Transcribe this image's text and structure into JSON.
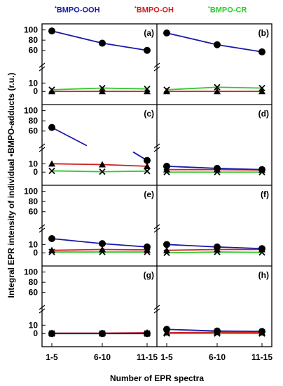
{
  "chart_data": {
    "type": "line",
    "legend": {
      "placement": "top",
      "entries": [
        {
          "name": "BMPO-OOH",
          "color": "#1a1aa8"
        },
        {
          "name": "BMPO-OH",
          "color": "#d02020"
        },
        {
          "name": "BMPO-CR",
          "color": "#2ecc2e"
        }
      ]
    },
    "legend_dot": "•",
    "ylabel": "Integral EPR intensity of individual •BMPO-adducts (r.u.)",
    "xlabel": "Number of EPR spectra",
    "categories": [
      "1-5",
      "6-10",
      "11-15"
    ],
    "y_axis": {
      "broken": true,
      "lower_range": [
        -4,
        17
      ],
      "upper_range": [
        50,
        105
      ],
      "lower_ticks": [
        "0",
        "10"
      ],
      "upper_ticks": [
        "60",
        "80",
        "100"
      ]
    },
    "panels": [
      {
        "label": "(a)",
        "series": [
          {
            "name": "BMPO-OOH",
            "values": [
              98,
              74,
              60
            ],
            "marker": "circle"
          },
          {
            "name": "BMPO-OH",
            "values": [
              0,
              0,
              0
            ],
            "marker": "triangle"
          },
          {
            "name": "BMPO-CR",
            "values": [
              2,
              4,
              3
            ],
            "marker": "cross"
          }
        ]
      },
      {
        "label": "(b)",
        "series": [
          {
            "name": "BMPO-OOH",
            "values": [
              94,
              71,
              57
            ],
            "marker": "circle"
          },
          {
            "name": "BMPO-OH",
            "values": [
              0,
              0,
              0
            ],
            "marker": "triangle"
          },
          {
            "name": "BMPO-CR",
            "values": [
              2,
              5,
              4
            ],
            "marker": "cross"
          }
        ]
      },
      {
        "label": "(c)",
        "series": [
          {
            "name": "BMPO-OOH",
            "values": [
              67,
              null,
              14
            ],
            "marker": "circle"
          },
          {
            "name": "BMPO-OH",
            "values": [
              10,
              9,
              7
            ],
            "marker": "triangle"
          },
          {
            "name": "BMPO-CR",
            "values": [
              1.5,
              0.5,
              1.2
            ],
            "marker": "cross"
          }
        ]
      },
      {
        "label": "(d)",
        "series": [
          {
            "name": "BMPO-OOH",
            "values": [
              7,
              4.5,
              3
            ],
            "marker": "circle"
          },
          {
            "name": "BMPO-OH",
            "values": [
              3,
              3,
              2.5
            ],
            "marker": "triangle"
          },
          {
            "name": "BMPO-CR",
            "values": [
              0,
              0,
              0
            ],
            "marker": "cross"
          }
        ]
      },
      {
        "label": "(e)",
        "series": [
          {
            "name": "BMPO-OOH",
            "values": [
              17,
              11,
              7
            ],
            "marker": "circle"
          },
          {
            "name": "BMPO-OH",
            "values": [
              3,
              4,
              3.5
            ],
            "marker": "triangle"
          },
          {
            "name": "BMPO-CR",
            "values": [
              1,
              1,
              1
            ],
            "marker": "cross"
          }
        ]
      },
      {
        "label": "(f)",
        "series": [
          {
            "name": "BMPO-OOH",
            "values": [
              10,
              7,
              5
            ],
            "marker": "circle"
          },
          {
            "name": "BMPO-OH",
            "values": [
              3,
              4,
              4
            ],
            "marker": "triangle"
          },
          {
            "name": "BMPO-CR",
            "values": [
              0,
              1,
              0.5
            ],
            "marker": "cross"
          }
        ]
      },
      {
        "label": "(g)",
        "series": [
          {
            "name": "BMPO-OOH",
            "values": [
              0,
              0,
              0
            ],
            "marker": "circle"
          },
          {
            "name": "BMPO-OH",
            "values": [
              0.5,
              0.5,
              1
            ],
            "marker": "triangle"
          },
          {
            "name": "BMPO-CR",
            "values": [
              0,
              0,
              0
            ],
            "marker": "cross"
          }
        ]
      },
      {
        "label": "(h)",
        "series": [
          {
            "name": "BMPO-OOH",
            "values": [
              5,
              3,
              2.5
            ],
            "marker": "circle"
          },
          {
            "name": "BMPO-OH",
            "values": [
              1,
              1.5,
              1
            ],
            "marker": "triangle"
          },
          {
            "name": "BMPO-CR",
            "values": [
              0,
              0,
              0
            ],
            "marker": "cross"
          }
        ]
      }
    ]
  }
}
